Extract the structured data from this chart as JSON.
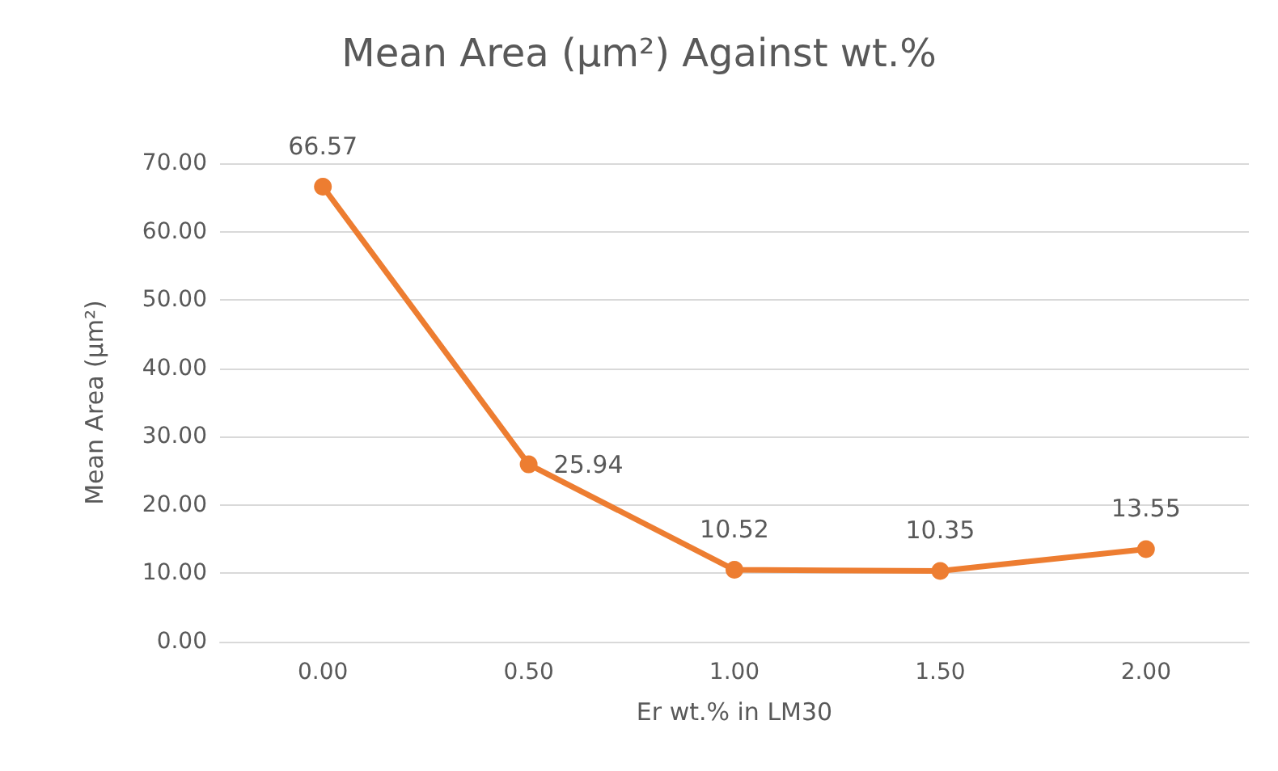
{
  "chart_data": {
    "type": "line",
    "title": "Mean Area (µm²) Against wt.%",
    "xlabel": "Er wt.% in LM30",
    "ylabel": "Mean Area (µm²)",
    "categories": [
      "0.00",
      "0.50",
      "1.00",
      "1.50",
      "2.00"
    ],
    "series": [
      {
        "color": "#ed7d31",
        "values": [
          66.57,
          25.94,
          10.52,
          10.35,
          13.55
        ]
      }
    ],
    "ylim": [
      0,
      70
    ],
    "yticks": [
      {
        "value": 0,
        "label": "0.00"
      },
      {
        "value": 10,
        "label": "10.00"
      },
      {
        "value": 20,
        "label": "20.00"
      },
      {
        "value": 30,
        "label": "30.00"
      },
      {
        "value": 40,
        "label": "40.00"
      },
      {
        "value": 50,
        "label": "50.00"
      },
      {
        "value": 60,
        "label": "60.00"
      },
      {
        "value": 70,
        "label": "70.00"
      }
    ],
    "grid": "y",
    "marker": "circle",
    "line_style": "solid",
    "data_labels": true
  }
}
